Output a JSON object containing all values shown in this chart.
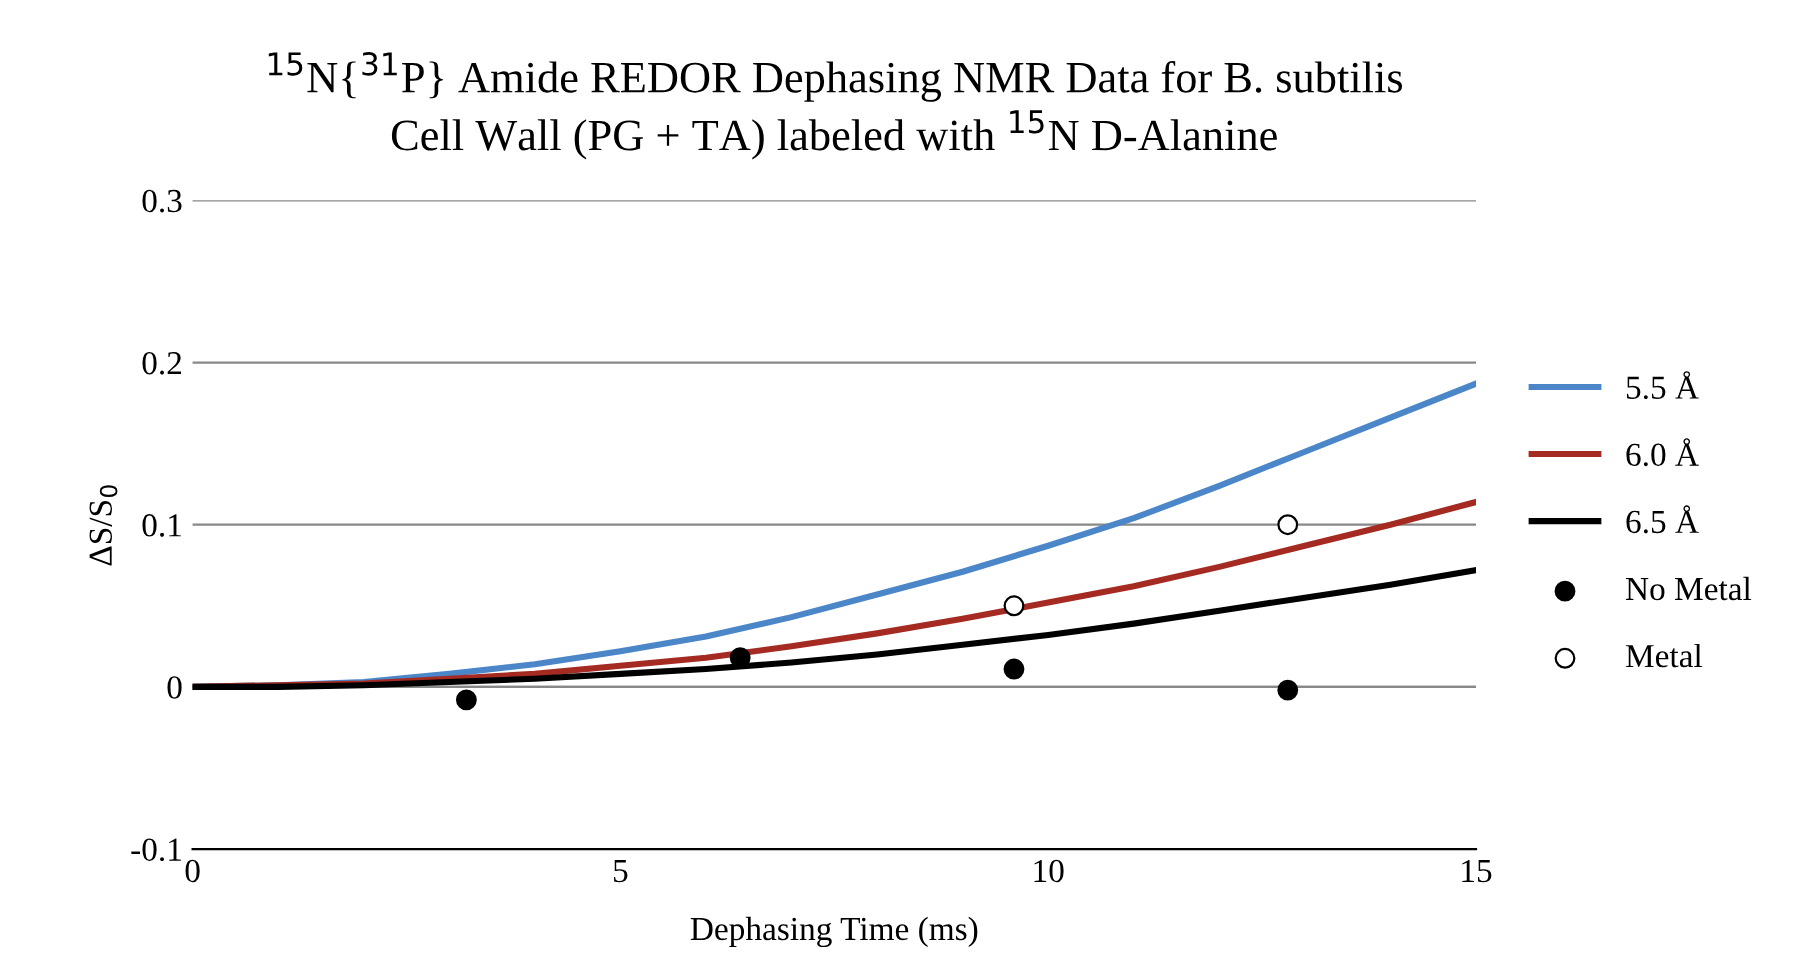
{
  "chart_data": {
    "type": "line",
    "title": "$^{15}$N{$^{31}$P} Amide REDOR Dephasing NMR Data for B. subtilis\nCell Wall (PG + TA) labeled with $^{15}$N D-Alanine",
    "xlabel": "Dephasing Time (ms)",
    "ylabel": "ΔS/S$_{0}$",
    "xlim": [
      0,
      15
    ],
    "xticks": [
      0,
      5,
      10,
      15
    ],
    "ylim": [
      -0.1,
      0.3
    ],
    "yticks": [
      {
        "value": -0.1,
        "label": "-0.1"
      },
      0,
      0.1,
      0.2,
      0.3
    ],
    "grid": "y",
    "legend": "right",
    "series": [
      {
        "name": "5.5 Å",
        "color": "#4a86c8",
        "marker": "none",
        "x": [
          0,
          1,
          2,
          3,
          4,
          5,
          6,
          7,
          8,
          9,
          10,
          11,
          12,
          13,
          14,
          15
        ],
        "values": [
          0,
          0.001,
          0.003,
          0.008,
          0.014,
          0.022,
          0.031,
          0.043,
          0.057,
          0.071,
          0.087,
          0.104,
          0.124,
          0.145,
          0.166,
          0.187
        ]
      },
      {
        "name": "6.0 Å",
        "color": "#a42a22",
        "marker": "none",
        "x": [
          0,
          1,
          2,
          3,
          4,
          5,
          6,
          7,
          8,
          9,
          10,
          11,
          12,
          13,
          14,
          15
        ],
        "values": [
          0,
          0.001,
          0.002,
          0.005,
          0.008,
          0.013,
          0.018,
          0.025,
          0.033,
          0.042,
          0.052,
          0.062,
          0.074,
          0.087,
          0.1,
          0.114
        ]
      },
      {
        "name": "6.5 Å",
        "color": "#000000",
        "marker": "none",
        "x": [
          0,
          1,
          2,
          3,
          4,
          5,
          6,
          7,
          8,
          9,
          10,
          11,
          12,
          13,
          14,
          15
        ],
        "values": [
          0,
          0,
          0.001,
          0.003,
          0.005,
          0.008,
          0.011,
          0.015,
          0.02,
          0.026,
          0.032,
          0.039,
          0.047,
          0.055,
          0.063,
          0.072
        ]
      },
      {
        "name": "No Metal",
        "type": "scatter",
        "color": "#000000",
        "marker": "circle",
        "x": [
          3.2,
          6.4,
          9.6,
          12.8
        ],
        "values": [
          -0.008,
          0.018,
          0.011,
          -0.002
        ]
      },
      {
        "name": "Metal",
        "type": "scatter",
        "color": "#ffffff",
        "marker": "circle",
        "x": [
          9.6,
          12.8
        ],
        "values": [
          0.05,
          0.1
        ]
      }
    ]
  }
}
